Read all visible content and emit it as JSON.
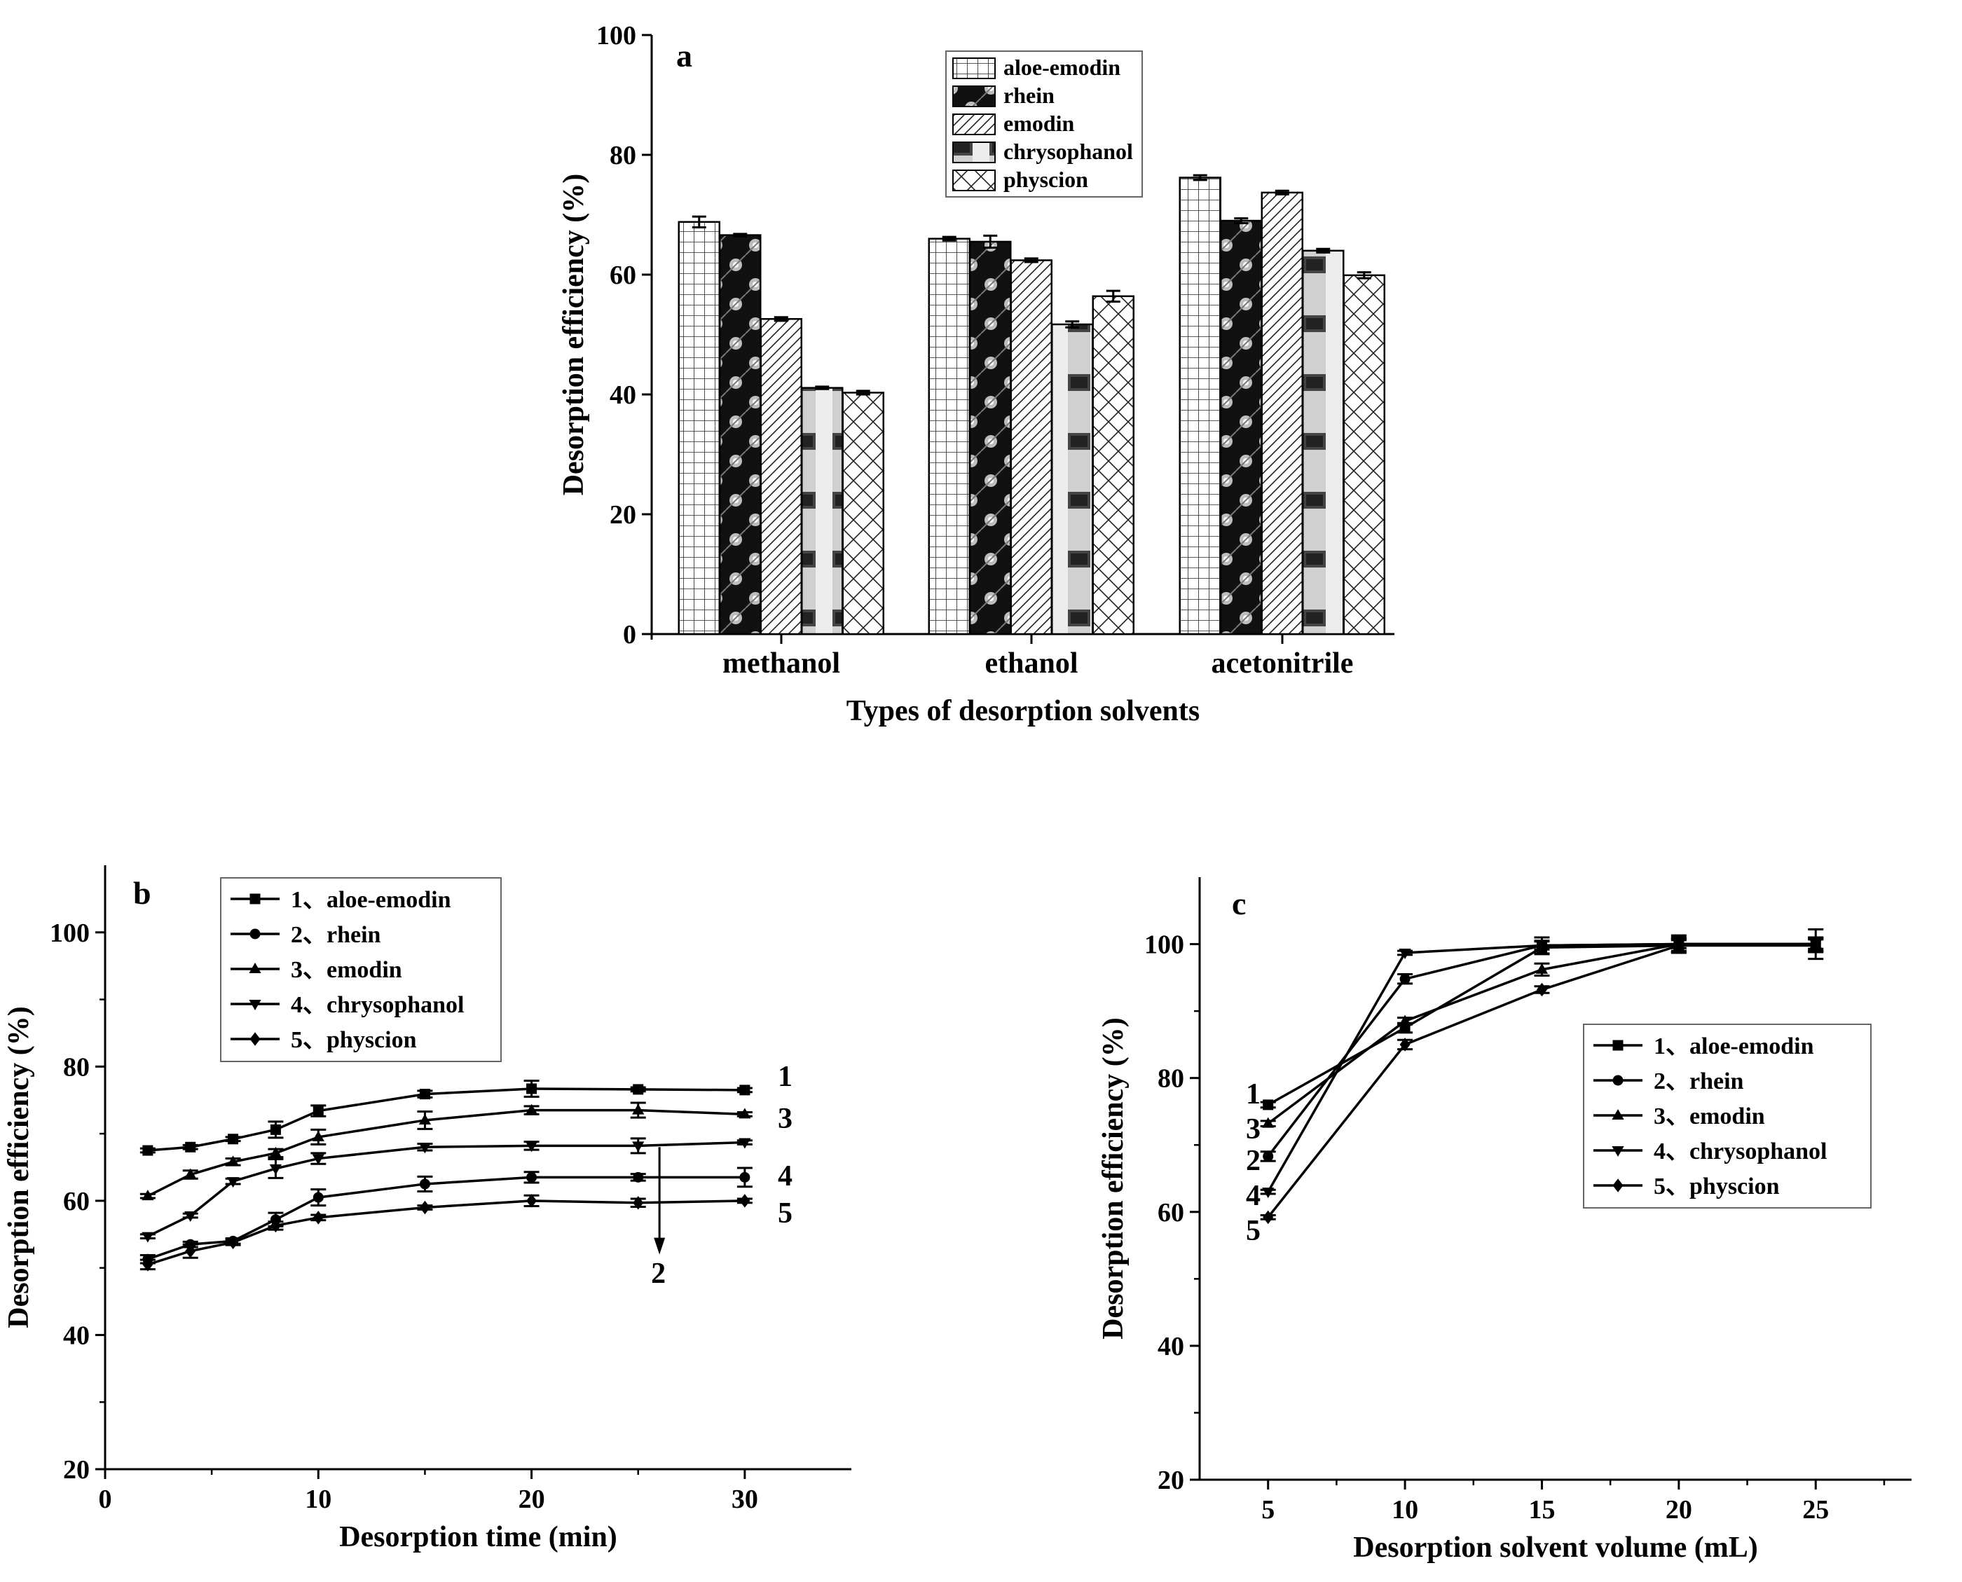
{
  "chart_data": [
    {
      "panel": "a",
      "type": "bar",
      "xlabel": "Types of desorption solvents",
      "ylabel": "Desorption efficiency (%)",
      "ylim": [
        0,
        100
      ],
      "yticks": [
        0,
        20,
        40,
        60,
        80,
        100
      ],
      "categories": [
        "methanol",
        "ethanol",
        "acetonitrile"
      ],
      "series": [
        {
          "name": "aloe-emodin",
          "values": [
            68.8,
            66.0,
            76.2
          ],
          "errors": [
            0.9,
            0.3,
            0.4
          ],
          "pattern": "grid"
        },
        {
          "name": "rhein",
          "values": [
            66.6,
            65.5,
            69.0
          ],
          "errors": [
            0.2,
            1.0,
            0.4
          ],
          "pattern": "dark"
        },
        {
          "name": "emodin",
          "values": [
            52.6,
            62.4,
            73.7
          ],
          "errors": [
            0.3,
            0.3,
            0.3
          ],
          "pattern": "diag"
        },
        {
          "name": "chrysophanol",
          "values": [
            41.1,
            51.7,
            64.0
          ],
          "errors": [
            0.2,
            0.5,
            0.3
          ],
          "pattern": "gray"
        },
        {
          "name": "physcion",
          "values": [
            40.3,
            56.4,
            59.9
          ],
          "errors": [
            0.3,
            0.9,
            0.5
          ],
          "pattern": "cross"
        }
      ],
      "legend": "top-right"
    },
    {
      "panel": "b",
      "type": "line",
      "xlabel": "Desorption time (min)",
      "ylabel": "Desorption efficiency (%)",
      "xlim": [
        0,
        35
      ],
      "ylim": [
        20,
        110
      ],
      "xticks": [
        0,
        10,
        20,
        30
      ],
      "yticks": [
        20,
        40,
        60,
        80,
        100
      ],
      "x": [
        2,
        4,
        6,
        8,
        10,
        15,
        20,
        25,
        30
      ],
      "series": [
        {
          "name": "1、aloe-emodin",
          "marker": "square",
          "end_label": "1",
          "values": [
            67.5,
            68.0,
            69.2,
            70.6,
            73.4,
            75.9,
            76.7,
            76.6,
            76.5
          ],
          "errors": [
            0.3,
            0.3,
            0.3,
            1.2,
            0.8,
            0.5,
            1.2,
            0.3,
            0.3
          ]
        },
        {
          "name": "2、rhein",
          "marker": "circle",
          "end_label": "2",
          "values": [
            51.3,
            53.5,
            54.0,
            57.2,
            60.5,
            62.5,
            63.5,
            63.5,
            63.5
          ],
          "errors": [
            0.6,
            0.4,
            0.4,
            1.0,
            1.2,
            1.1,
            0.8,
            0.5,
            1.4
          ]
        },
        {
          "name": "3、emodin",
          "marker": "triangle-up",
          "end_label": "3",
          "values": [
            60.7,
            63.9,
            65.8,
            67.1,
            69.5,
            72.0,
            73.5,
            73.5,
            72.9
          ],
          "errors": [
            0.3,
            0.6,
            0.5,
            0.6,
            1.1,
            1.3,
            0.6,
            1.1,
            0.3
          ]
        },
        {
          "name": "4、chrysophanol",
          "marker": "triangle-down",
          "end_label": "4",
          "values": [
            54.7,
            57.8,
            62.9,
            64.8,
            66.3,
            68.0,
            68.2,
            68.2,
            68.7
          ],
          "errors": [
            0.3,
            0.3,
            0.4,
            1.4,
            0.8,
            0.5,
            0.6,
            1.1,
            0.3
          ]
        },
        {
          "name": "5、physcion",
          "marker": "diamond",
          "end_label": "5",
          "values": [
            50.5,
            52.5,
            53.8,
            56.3,
            57.5,
            59.0,
            60.0,
            59.7,
            60.0
          ],
          "errors": [
            0.7,
            1.0,
            0.4,
            0.6,
            0.4,
            0.3,
            0.8,
            0.6,
            0.3
          ]
        }
      ],
      "annotations": [
        "1",
        "3",
        "4",
        "5",
        "2"
      ],
      "legend": "top-left"
    },
    {
      "panel": "c",
      "type": "line",
      "xlabel": "Desorption solvent volume (mL)",
      "ylabel": "Desorption efficiency (%)",
      "xlim": [
        2.5,
        28.5
      ],
      "ylim": [
        20,
        110
      ],
      "xticks": [
        5,
        10,
        15,
        20,
        25
      ],
      "yticks": [
        20,
        40,
        60,
        80,
        100
      ],
      "x": [
        5,
        10,
        15,
        20,
        25
      ],
      "series": [
        {
          "name": "1、aloe-emodin",
          "marker": "square",
          "start_label": "1",
          "values": [
            76.0,
            87.5,
            99.5,
            99.8,
            99.8
          ],
          "errors": [
            0.4,
            0.7,
            1.0,
            1.0,
            1.0
          ]
        },
        {
          "name": "2、rhein",
          "marker": "circle",
          "start_label": "2",
          "values": [
            68.3,
            94.8,
            99.8,
            100.0,
            100.0
          ],
          "errors": [
            0.7,
            0.7,
            0.6,
            0.6,
            2.2
          ]
        },
        {
          "name": "3、emodin",
          "marker": "triangle-up",
          "start_label": "3",
          "values": [
            73.2,
            88.5,
            96.2,
            100.0,
            100.0
          ],
          "errors": [
            0.4,
            0.5,
            0.9,
            1.0,
            1.0
          ]
        },
        {
          "name": "4、chrysophanol",
          "marker": "triangle-down",
          "start_label": "4",
          "values": [
            63.0,
            98.7,
            99.8,
            100.0,
            100.0
          ],
          "errors": [
            0.3,
            0.3,
            1.2,
            1.3,
            0.7
          ]
        },
        {
          "name": "5、physcion",
          "marker": "diamond",
          "start_label": "5",
          "values": [
            59.2,
            85.0,
            93.2,
            99.8,
            100.0
          ],
          "errors": [
            0.3,
            0.7,
            0.5,
            1.0,
            1.0
          ]
        }
      ],
      "legend": "right"
    }
  ]
}
